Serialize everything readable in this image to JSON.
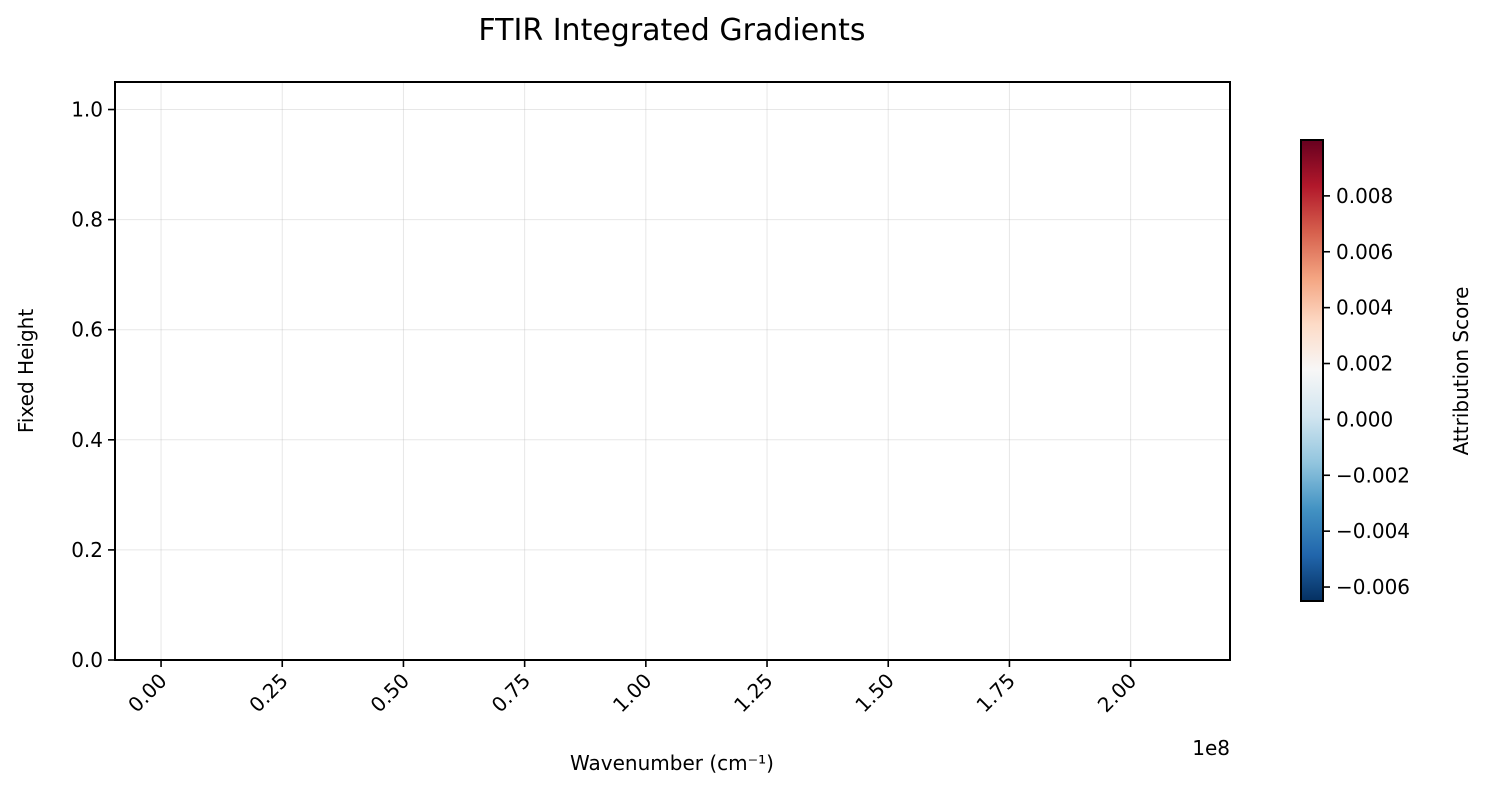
{
  "chart_data": {
    "type": "heatmap",
    "title": "FTIR Integrated Gradients",
    "xlabel": "Wavenumber (cm⁻¹)",
    "ylabel": "Fixed Height",
    "x_offset_text": "1e8",
    "xlim": [
      -0.095,
      2.205
    ],
    "ylim": [
      0,
      1.05
    ],
    "x_scale_factor": 100000000,
    "x_ticks": [
      0.0,
      0.25,
      0.5,
      0.75,
      1.0,
      1.25,
      1.5,
      1.75,
      2.0
    ],
    "x_tick_labels": [
      "0.00",
      "0.25",
      "0.50",
      "0.75",
      "1.00",
      "1.25",
      "1.50",
      "1.75",
      "2.00"
    ],
    "y_ticks": [
      0.0,
      0.2,
      0.4,
      0.6,
      0.8,
      1.0
    ],
    "y_tick_labels": [
      "0.0",
      "0.2",
      "0.4",
      "0.6",
      "0.8",
      "1.0"
    ],
    "grid": true,
    "values": [],
    "colorbar": {
      "label": "Attribution Score",
      "colormap": "RdBu_r",
      "range": [
        -0.0065,
        0.01
      ],
      "ticks": [
        -0.006,
        -0.004,
        -0.002,
        0.0,
        0.002,
        0.004,
        0.006,
        0.008
      ],
      "tick_labels": [
        "−0.006",
        "−0.004",
        "−0.002",
        "0.000",
        "0.002",
        "0.004",
        "0.006",
        "0.008"
      ],
      "colors": [
        "#053061",
        "#2166ac",
        "#4393c3",
        "#92c5de",
        "#d1e5f0",
        "#f7f7f7",
        "#fddbc7",
        "#f4a582",
        "#d6604d",
        "#b2182b",
        "#67001f"
      ]
    }
  }
}
